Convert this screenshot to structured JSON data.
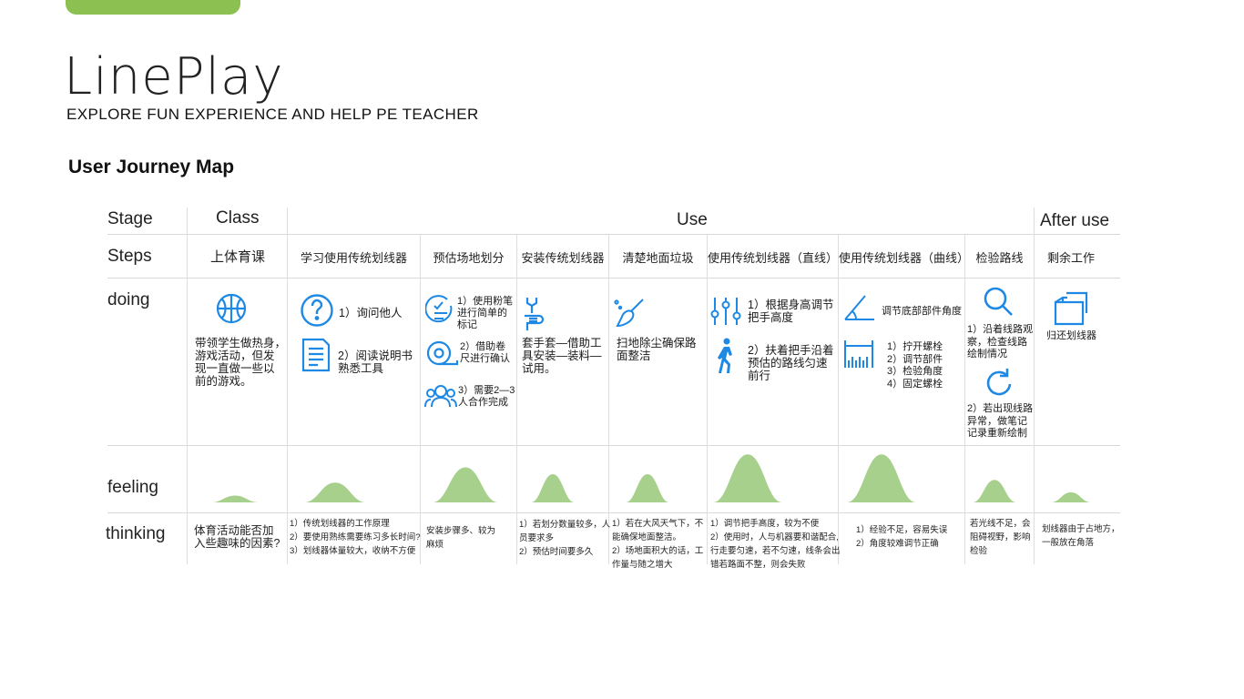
{
  "header": {
    "title": "LinePlay",
    "subtitle": "EXPLORE FUN EXPERIENCE AND HELP PE TEACHER",
    "section_title": "User Journey Map"
  },
  "colors": {
    "accent": "#8cc152",
    "icon": "#1e88e5",
    "feeling": "#a8d08d"
  },
  "rows": {
    "stage": "Stage",
    "steps": "Steps",
    "doing": "doing",
    "feeling": "feeling",
    "thinking": "thinking"
  },
  "stages": {
    "class": "Class",
    "use": "Use",
    "after": "After use"
  },
  "steps": [
    "上体育课",
    "学习使用传统划线器",
    "预估场地划分",
    "安装传统划线器",
    "清楚地面垃圾",
    "使用传统划线器（直线）",
    "使用传统划线器（曲线）",
    "检验路线",
    "剩余工作"
  ],
  "doing": {
    "s1": {
      "icon": "basketball-icon",
      "text": [
        "带领学生做热身，",
        "游戏活动，但发",
        "现一直做一些以",
        "前的游戏。"
      ]
    },
    "s2": {
      "items": [
        {
          "icon": "question-icon",
          "text": [
            "1）询问他人"
          ]
        },
        {
          "icon": "document-icon",
          "text": [
            "2）阅读说明书",
            "熟悉工具"
          ]
        }
      ]
    },
    "s3": {
      "items": [
        {
          "icon": "checklist-icon",
          "text": [
            "1）使用粉笔",
            "进行简单的",
            "标记"
          ]
        },
        {
          "icon": "tape-measure-icon",
          "text": [
            "2）借助卷",
            "尺进行确认"
          ]
        },
        {
          "icon": "people-icon",
          "text": [
            "3）需要2—3",
            "人合作完成"
          ]
        }
      ]
    },
    "s4": {
      "icon": "wrench-hand-icon",
      "text": [
        "套手套—借助工",
        "具安装—装料—",
        "试用。"
      ]
    },
    "s5": {
      "icon": "broom-icon",
      "text": [
        "扫地除尘确保路",
        "面整洁"
      ]
    },
    "s6": {
      "items": [
        {
          "icon": "sliders-icon",
          "text": [
            "1）根据身高调节",
            "把手高度"
          ]
        },
        {
          "icon": "walking-icon",
          "text": [
            "2）扶着把手沿着",
            "预估的路线匀速",
            "前行"
          ]
        }
      ]
    },
    "s7": {
      "items": [
        {
          "icon": "angle-icon",
          "text": [
            "调节底部部件角度"
          ]
        },
        {
          "icon": "ruler-icon",
          "text": [
            "1）拧开螺栓",
            "2）调节部件",
            "3）检验角度",
            "4）固定螺栓"
          ]
        }
      ]
    },
    "s8": {
      "items": [
        {
          "icon": "search-icon",
          "text": [
            "1）沿着线路观",
            "察，检查线路",
            "绘制情况"
          ]
        },
        {
          "icon": "redo-icon",
          "text": [
            "2）若出现线路",
            "异常，做笔记",
            "记录重新绘制"
          ]
        }
      ]
    },
    "s9": {
      "icon": "return-box-icon",
      "text": [
        "归还划线器"
      ]
    }
  },
  "feeling_levels": [
    0.12,
    0.35,
    0.62,
    0.5,
    0.5,
    0.85,
    0.85,
    0.4,
    0.18
  ],
  "thinking": [
    [
      "体育活动能否加",
      "入些趣味的因素?"
    ],
    [
      "1）传统划线器的工作原理",
      "2）要使用熟练需要练习多长时间?",
      "3）划线器体量较大，收纳不方便"
    ],
    [
      "安装步骤多、较为",
      "麻烦"
    ],
    [
      "1）若划分数量较多，人",
      "员要求多",
      "2）预估时间要多久"
    ],
    [
      "1）若在大风天气下，不",
      "能确保地面整洁。",
      "2）场地面积大的话，工",
      "作量与随之增大"
    ],
    [
      "1）调节把手高度，较为不便",
      "2）使用时，人与机器要和谐配合,",
      "行走要匀速，若不匀速，线条会出",
      "错若路面不整，则会失败"
    ],
    [
      "1）经验不足，容易失误",
      "2）角度较难调节正确"
    ],
    [
      "若光线不足，会",
      "阻碍视野，影响",
      "检验"
    ],
    [
      "划线器由于占地方，",
      "一般放在角落"
    ]
  ]
}
